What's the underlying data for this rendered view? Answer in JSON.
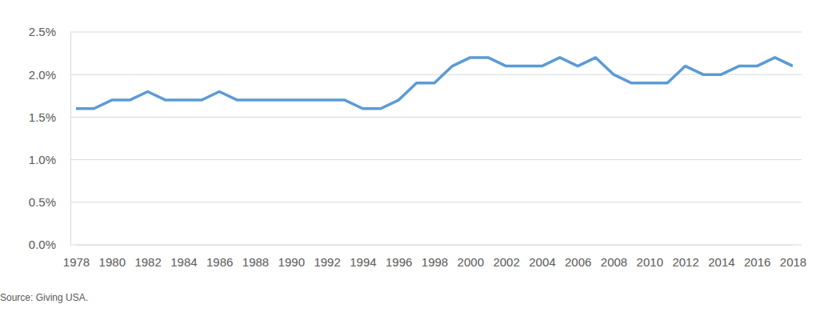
{
  "chart_data": {
    "type": "line",
    "source": "Source: Giving USA.",
    "x": [
      1978,
      1979,
      1980,
      1981,
      1982,
      1983,
      1984,
      1985,
      1986,
      1987,
      1988,
      1989,
      1990,
      1991,
      1992,
      1993,
      1994,
      1995,
      1996,
      1997,
      1998,
      1999,
      2000,
      2001,
      2002,
      2003,
      2004,
      2005,
      2006,
      2007,
      2008,
      2009,
      2010,
      2011,
      2012,
      2013,
      2014,
      2015,
      2016,
      2017,
      2018
    ],
    "values": [
      1.6,
      1.6,
      1.7,
      1.7,
      1.8,
      1.7,
      1.7,
      1.7,
      1.8,
      1.7,
      1.7,
      1.7,
      1.7,
      1.7,
      1.7,
      1.7,
      1.6,
      1.6,
      1.7,
      1.9,
      1.9,
      2.1,
      2.2,
      2.2,
      2.1,
      2.1,
      2.1,
      2.2,
      2.1,
      2.2,
      2.0,
      1.9,
      1.9,
      1.9,
      2.1,
      2.0,
      2.0,
      2.1,
      2.1,
      2.2,
      2.1
    ],
    "color": "#5b9bd5",
    "xlim": [
      1978,
      2018
    ],
    "xticks": [
      1978,
      1980,
      1982,
      1984,
      1986,
      1988,
      1990,
      1992,
      1994,
      1996,
      1998,
      2000,
      2002,
      2004,
      2006,
      2008,
      2010,
      2012,
      2014,
      2016,
      2018
    ],
    "ylim": [
      0,
      2.5
    ],
    "yticks": [
      {
        "value": 0,
        "label": "0.0%"
      },
      {
        "value": 0.5,
        "label": "0.5%"
      },
      {
        "value": 1,
        "label": "1.0%"
      },
      {
        "value": 1.5,
        "label": "1.5%"
      },
      {
        "value": 2,
        "label": "2.0%"
      },
      {
        "value": 2.5,
        "label": "2.5%"
      }
    ],
    "grid": true
  }
}
